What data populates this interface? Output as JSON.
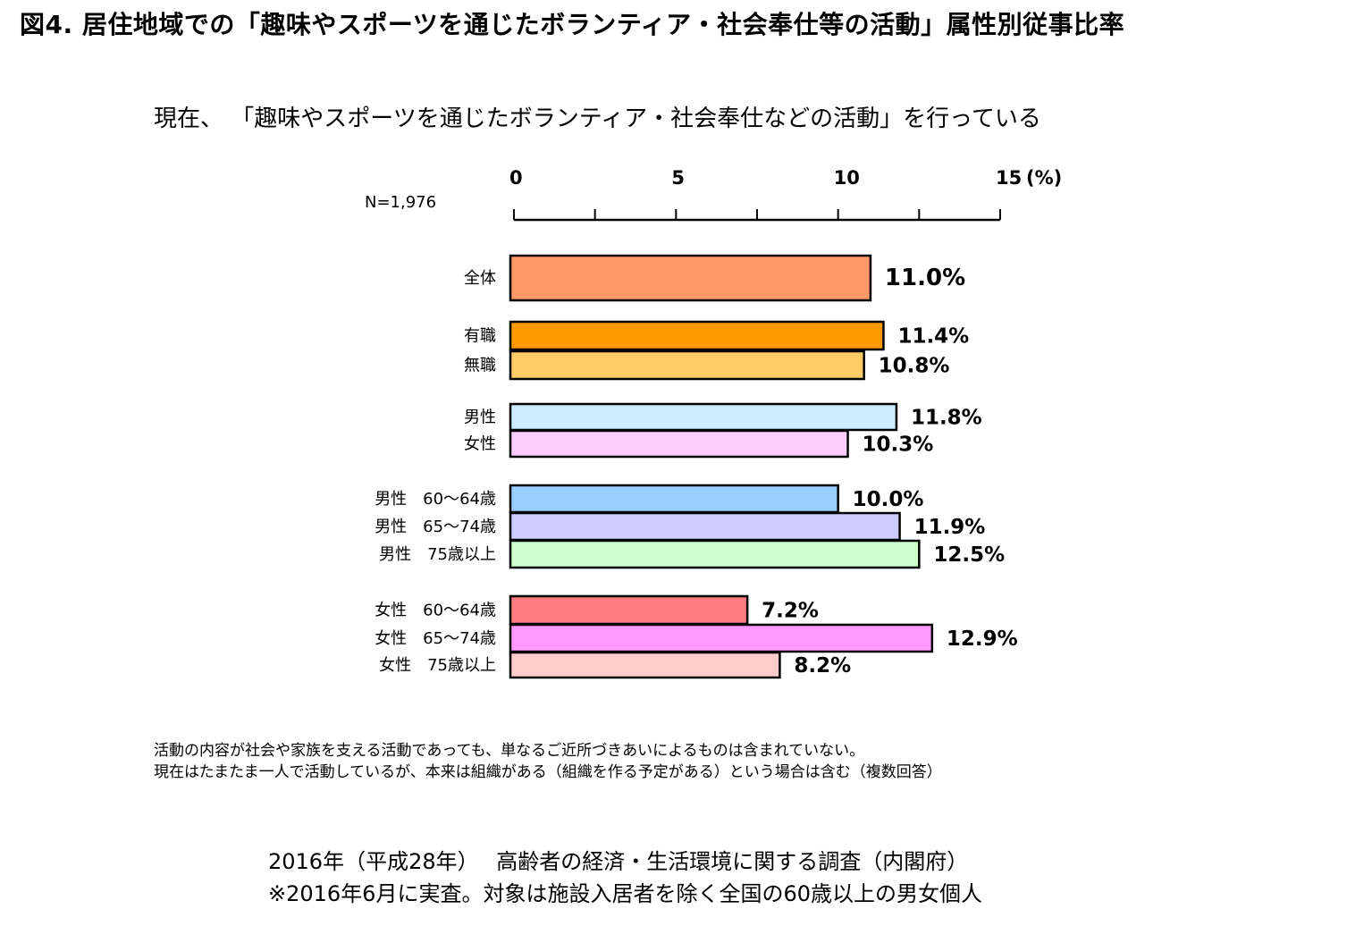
{
  "figure_title": "図4. 居住地域での「趣味やスポーツを通じたボランティア・社会奉仕等の活動」属性別従事比率",
  "subtitle": "現在、 「趣味やスポーツを通じたボランティア・社会奉仕などの活動」を行っている",
  "sample_size": "N=1,976",
  "notes": [
    "活動の内容が社会や家族を支える活動であっても、単なるご近所づきあいによるものは含まれていない。",
    "現在はたまたま一人で活動しているが、本来は組織がある（組織を作る予定がある）という場合は含む（複数回答）"
  ],
  "source": [
    "2016年（平成28年）　 高齢者の経済・生活環境に関する調査（内閣府）",
    "※2016年6月に実査。対象は施設入居者を除く全国の60歳以上の男女個人"
  ],
  "chart_data": {
    "type": "bar",
    "orientation": "horizontal",
    "axis": {
      "min": 0,
      "max": 15,
      "ticks": [
        0,
        5,
        10,
        15
      ],
      "tick_labels": [
        "0",
        "5",
        "10",
        "15"
      ],
      "unit": "(%)",
      "position": "top"
    },
    "categories": [
      "全体",
      "有職",
      "無職",
      "男性",
      "女性",
      "男性　60～64歳",
      "男性　65～74歳",
      "男性　75歳以上",
      "女性　60～64歳",
      "女性　65～74歳",
      "女性　75歳以上"
    ],
    "values": [
      11.0,
      11.4,
      10.8,
      11.8,
      10.3,
      10.0,
      11.9,
      12.5,
      7.2,
      12.9,
      8.2
    ],
    "value_labels": [
      "11.0%",
      "11.4%",
      "10.8%",
      "11.8%",
      "10.3%",
      "10.0%",
      "11.9%",
      "12.5%",
      "7.2%",
      "12.9%",
      "8.2%"
    ],
    "colors": [
      "#FF9966",
      "#FF9900",
      "#FFCC66",
      "#CCECFF",
      "#FFCCFF",
      "#99CCFF",
      "#CCCCFF",
      "#CCFFCC",
      "#FF7C80",
      "#FF99FF",
      "#FFCCCC"
    ],
    "groups": [
      [
        0
      ],
      [
        1,
        2
      ],
      [
        3,
        4
      ],
      [
        5,
        6,
        7
      ],
      [
        8,
        9,
        10
      ]
    ],
    "legend": "none",
    "grid": false
  }
}
